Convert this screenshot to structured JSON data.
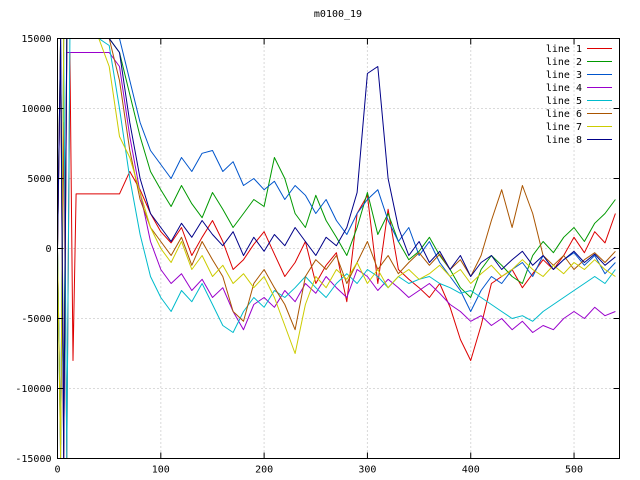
{
  "title": "m0100_19",
  "chart_data": {
    "type": "line",
    "title": "m0100_19",
    "xlabel": "",
    "ylabel": "",
    "xlim": [
      0,
      544
    ],
    "ylim": [
      -15000,
      15000
    ],
    "x_ticks": [
      0,
      100,
      200,
      300,
      400,
      500
    ],
    "y_ticks": [
      -15000,
      -10000,
      -5000,
      0,
      5000,
      10000,
      15000
    ],
    "grid": true,
    "legend_position": "top-right",
    "grid_color": "#b4b4b4",
    "border_color": "#000000",
    "x": [
      0,
      3,
      6,
      9,
      12,
      15,
      18,
      22,
      30,
      40,
      50,
      60,
      70,
      80,
      90,
      100,
      110,
      120,
      130,
      140,
      150,
      160,
      170,
      180,
      190,
      200,
      210,
      220,
      230,
      240,
      250,
      260,
      270,
      280,
      290,
      300,
      310,
      320,
      330,
      340,
      350,
      360,
      370,
      380,
      390,
      400,
      410,
      420,
      430,
      440,
      450,
      460,
      470,
      480,
      490,
      500,
      510,
      520,
      530,
      540
    ],
    "series": [
      {
        "name": "line 1",
        "color": "#dd0000",
        "values": [
          0,
          -14000,
          9000,
          -15000,
          14000,
          -8000,
          3900,
          3900,
          3900,
          3900,
          3900,
          3900,
          5500,
          4200,
          2500,
          1200,
          400,
          1500,
          -500,
          800,
          2000,
          500,
          -1500,
          -800,
          300,
          1200,
          -400,
          -2000,
          -1000,
          500,
          -2500,
          -1200,
          -300,
          -3800,
          2500,
          3800,
          -2500,
          2800,
          -1500,
          -2200,
          -2800,
          -3500,
          -2500,
          -4200,
          -6500,
          -8000,
          -5500,
          -2500,
          -2000,
          -1500,
          -2800,
          -1800,
          -800,
          -1500,
          -500,
          800,
          -300,
          1200,
          400,
          2500
        ]
      },
      {
        "name": "line 2",
        "color": "#009900",
        "values": [
          0,
          15000,
          -12000,
          15000,
          15000,
          15000,
          15000,
          15000,
          15000,
          15000,
          15000,
          14000,
          11000,
          8000,
          5500,
          4200,
          3000,
          4500,
          3200,
          2200,
          4000,
          2800,
          1500,
          2500,
          3500,
          3000,
          6500,
          5000,
          2500,
          1500,
          3800,
          2000,
          800,
          -500,
          1500,
          4000,
          1000,
          2500,
          500,
          -800,
          -200,
          800,
          -500,
          -1500,
          -2800,
          -3500,
          -1500,
          -500,
          -1200,
          -2000,
          -2500,
          -500,
          500,
          -300,
          800,
          1500,
          500,
          1800,
          2500,
          3500
        ]
      },
      {
        "name": "line 3",
        "color": "#0055cc",
        "values": [
          0,
          -15000,
          15000,
          15000,
          15000,
          15000,
          15000,
          15000,
          15000,
          15000,
          15000,
          15000,
          12000,
          9000,
          7000,
          6000,
          5000,
          6500,
          5500,
          6800,
          7000,
          5500,
          6200,
          4500,
          5000,
          4200,
          4800,
          3500,
          4500,
          3800,
          2500,
          3500,
          2000,
          1000,
          2500,
          3500,
          4200,
          2000,
          500,
          1500,
          -500,
          500,
          -1000,
          -2000,
          -3000,
          -4500,
          -3000,
          -2000,
          -2500,
          -1500,
          -1000,
          -2000,
          -500,
          -1500,
          -800,
          -300,
          -1200,
          -500,
          -1800,
          -1000
        ]
      },
      {
        "name": "line 4",
        "color": "#9900cc",
        "values": [
          0,
          14000,
          -15000,
          14000,
          14000,
          14000,
          14000,
          14000,
          14000,
          14000,
          14000,
          13000,
          8000,
          4000,
          500,
          -1500,
          -2500,
          -1800,
          -3000,
          -2200,
          -3500,
          -2800,
          -4500,
          -5800,
          -4000,
          -3500,
          -4200,
          -3000,
          -3800,
          -2500,
          -3200,
          -2000,
          -2800,
          -3500,
          -1500,
          -2000,
          -3000,
          -2200,
          -2800,
          -3500,
          -3000,
          -2500,
          -3200,
          -4000,
          -4500,
          -5200,
          -4800,
          -5500,
          -5000,
          -5800,
          -5200,
          -6000,
          -5500,
          -5800,
          -5000,
          -4500,
          -5000,
          -4200,
          -4800,
          -4500
        ]
      },
      {
        "name": "line 5",
        "color": "#00bbcc",
        "values": [
          0,
          -14000,
          14000,
          -15000,
          15000,
          15000,
          15000,
          15000,
          15000,
          15000,
          14500,
          10000,
          5000,
          1000,
          -2000,
          -3500,
          -4500,
          -3000,
          -3800,
          -2500,
          -4000,
          -5500,
          -6000,
          -4500,
          -3500,
          -4200,
          -3000,
          -3500,
          -2800,
          -2000,
          -2800,
          -3500,
          -2500,
          -1800,
          -2500,
          -1500,
          -2000,
          -2800,
          -2000,
          -2500,
          -2200,
          -2000,
          -2500,
          -2800,
          -3200,
          -3000,
          -3500,
          -4000,
          -4500,
          -5000,
          -4800,
          -5200,
          -4500,
          -4000,
          -3500,
          -3000,
          -2500,
          -2000,
          -2500,
          -1500
        ]
      },
      {
        "name": "line 6",
        "color": "#aa5500",
        "values": [
          0,
          15000,
          -15000,
          15000,
          15000,
          15000,
          15000,
          15000,
          15000,
          15000,
          15000,
          12000,
          7000,
          3500,
          1500,
          500,
          -500,
          800,
          -1200,
          500,
          -800,
          -2000,
          -4500,
          -5200,
          -2500,
          -1500,
          -2800,
          -4000,
          -5800,
          -2000,
          -800,
          -1500,
          -500,
          -2500,
          -1000,
          500,
          -1500,
          -500,
          -1800,
          -1000,
          -300,
          -1200,
          -400,
          -1500,
          -800,
          -2000,
          -500,
          2000,
          4200,
          1500,
          4500,
          2500,
          -500,
          -1200,
          -500,
          -1500,
          -800,
          -300,
          -1000,
          -200
        ]
      },
      {
        "name": "line 7",
        "color": "#cccc00",
        "values": [
          0,
          -15000,
          15000,
          15000,
          15000,
          15000,
          15000,
          15000,
          15000,
          15000,
          13000,
          8000,
          6500,
          4000,
          1500,
          0,
          -1000,
          500,
          -1500,
          -500,
          -2000,
          -1200,
          -2500,
          -1800,
          -2800,
          -2000,
          -3500,
          -5500,
          -7500,
          -4000,
          -2000,
          -2800,
          -1500,
          -2200,
          -1000,
          -2500,
          -1500,
          -2800,
          -2000,
          -1500,
          -2200,
          -1800,
          -1200,
          -2000,
          -1500,
          -2500,
          -1800,
          -1200,
          -2000,
          -1500,
          -800,
          -1500,
          -2000,
          -1200,
          -1800,
          -1000,
          -1500,
          -800,
          -1500,
          -2000
        ]
      },
      {
        "name": "line 8",
        "color": "#000088",
        "values": [
          0,
          15000,
          -15000,
          15000,
          15000,
          15000,
          15000,
          15000,
          15000,
          15000,
          15000,
          14000,
          9000,
          5000,
          2500,
          1500,
          500,
          1800,
          800,
          2000,
          1000,
          200,
          1200,
          -500,
          800,
          -200,
          1000,
          200,
          1500,
          500,
          -500,
          800,
          200,
          1500,
          4000,
          12500,
          13000,
          5000,
          1500,
          -500,
          500,
          -1000,
          -200,
          -1500,
          -500,
          -2000,
          -1000,
          -500,
          -1500,
          -800,
          -200,
          -1200,
          -500,
          -1500,
          -800,
          -200,
          -1000,
          -400,
          -1200,
          -600
        ]
      }
    ]
  }
}
